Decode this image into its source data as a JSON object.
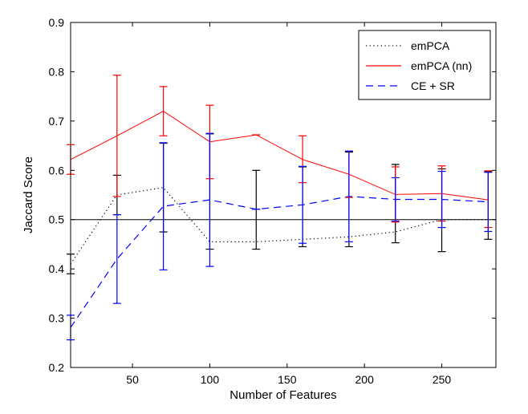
{
  "chart_data": {
    "type": "line",
    "title": "",
    "xlabel": "Number of Features",
    "ylabel": "Jaccard Score",
    "xlim": [
      10,
      285
    ],
    "ylim": [
      0.2,
      0.9
    ],
    "xticks": [
      50,
      100,
      150,
      200,
      250
    ],
    "yticks": [
      0.2,
      0.3,
      0.4,
      0.5,
      0.6,
      0.7,
      0.8,
      0.9
    ],
    "grid": false,
    "legend_position": "top-right",
    "reference_line_y": 0.5,
    "x": [
      10,
      40,
      70,
      100,
      130,
      160,
      190,
      220,
      250,
      280
    ],
    "series": [
      {
        "name": "emPCA",
        "style": "dotted",
        "color": "#000000",
        "values": [
          0.41,
          0.55,
          0.565,
          0.455,
          0.455,
          0.46,
          0.465,
          0.475,
          0.5,
          0.5
        ],
        "error_low": [
          0.39,
          0.51,
          0.475,
          0.44,
          0.44,
          0.445,
          0.445,
          0.453,
          0.435,
          0.46
        ],
        "error_high": [
          0.43,
          0.59,
          0.655,
          0.674,
          0.6,
          0.607,
          0.637,
          0.612,
          0.603,
          0.597
        ]
      },
      {
        "name": "emPCA (nn)",
        "style": "solid",
        "color": "#ff0000",
        "values": [
          0.622,
          0.67,
          0.72,
          0.658,
          0.672,
          0.622,
          0.592,
          0.551,
          0.553,
          0.54
        ],
        "error_low": [
          0.592,
          0.547,
          0.67,
          0.583,
          0.672,
          0.575,
          0.545,
          0.495,
          0.497,
          0.484
        ],
        "error_high": [
          0.652,
          0.793,
          0.77,
          0.732,
          0.672,
          0.67,
          0.639,
          0.607,
          0.609,
          0.599
        ]
      },
      {
        "name": "CE + SR",
        "style": "dashed",
        "color": "#0000ff",
        "values": [
          0.281,
          0.42,
          0.527,
          0.54,
          0.521,
          0.53,
          0.547,
          0.541,
          0.541,
          0.536
        ],
        "error_low": [
          0.256,
          0.33,
          0.398,
          0.405,
          0.521,
          0.452,
          0.455,
          0.497,
          0.484,
          0.476
        ],
        "error_high": [
          0.306,
          0.51,
          0.656,
          0.675,
          0.521,
          0.608,
          0.639,
          0.585,
          0.598,
          0.596
        ]
      }
    ]
  }
}
